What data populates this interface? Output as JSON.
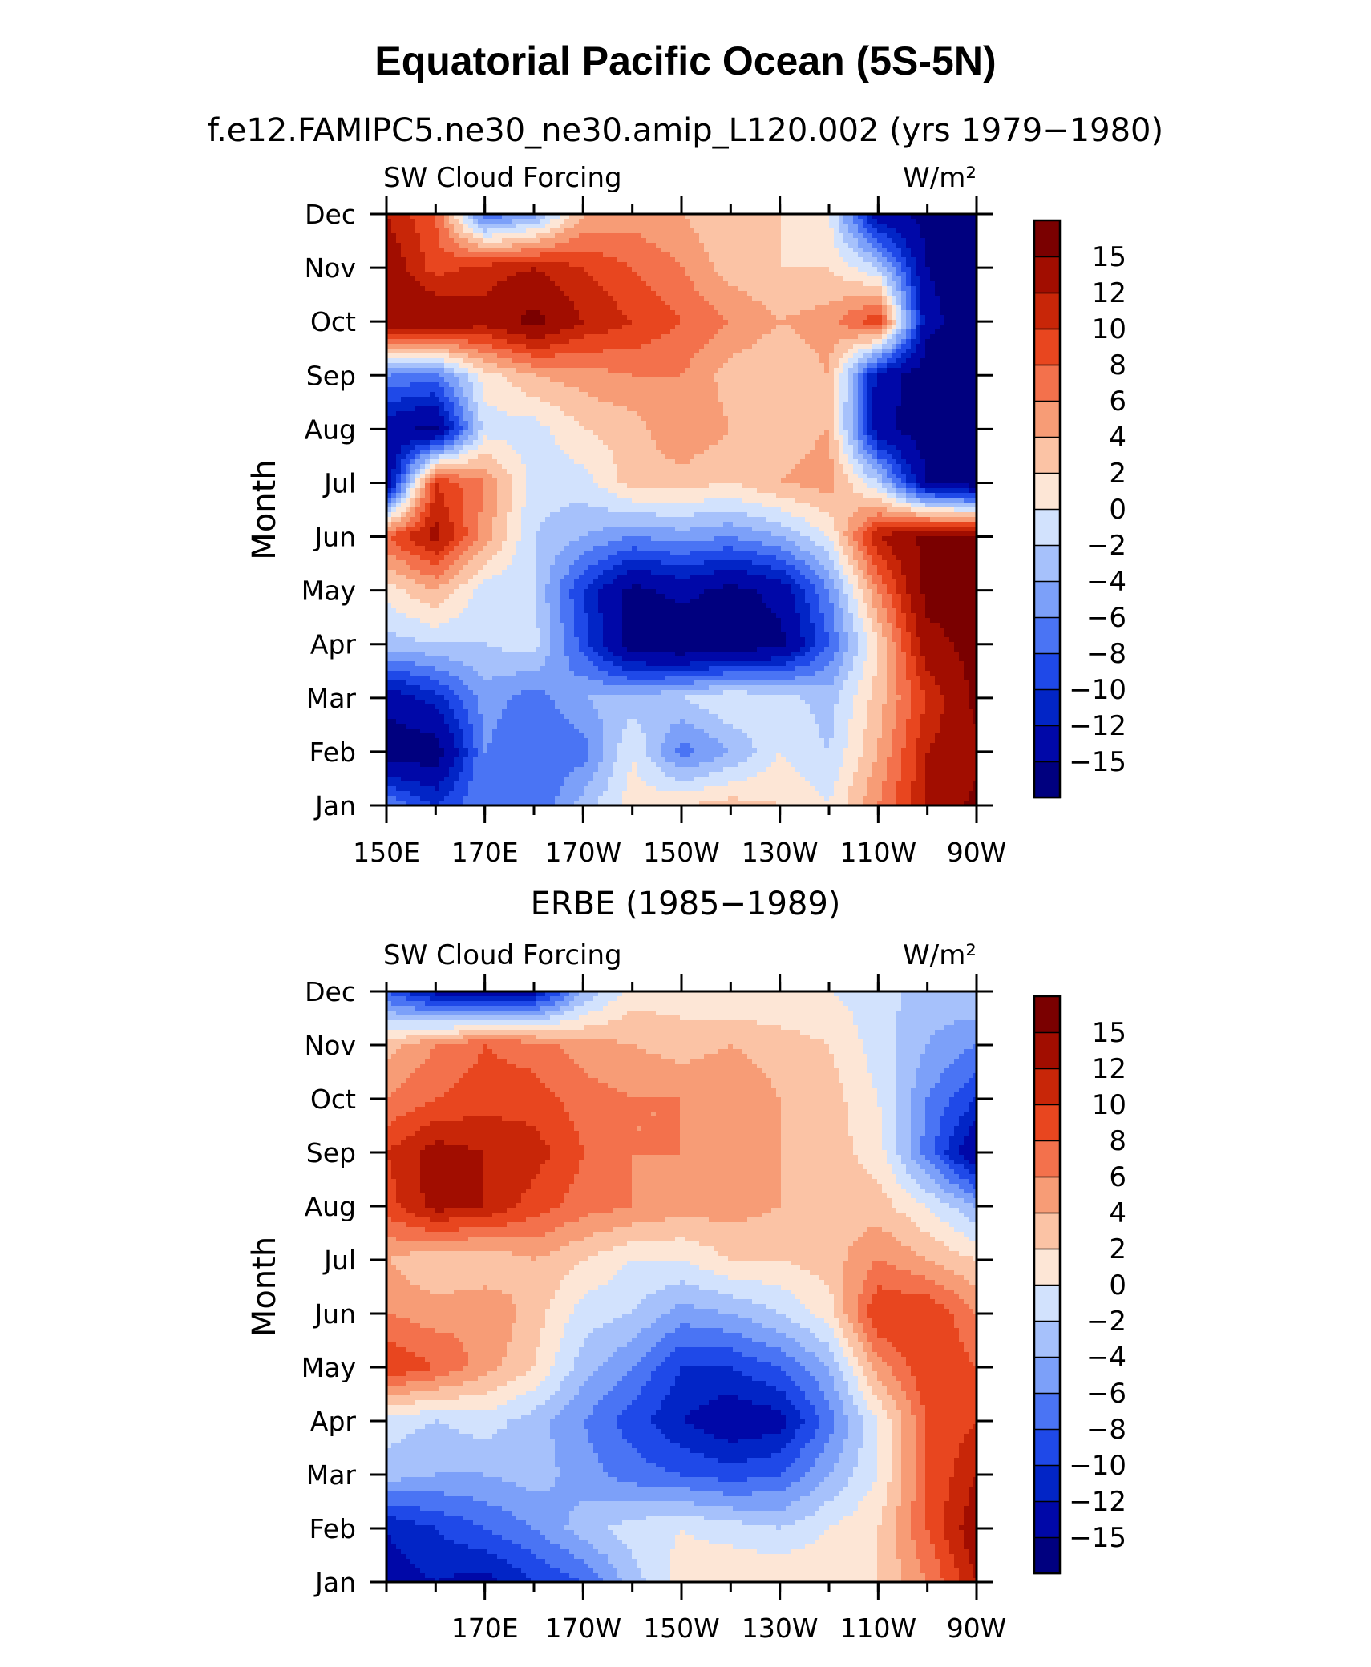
{
  "figure": {
    "title": "Equatorial Pacific Ocean (5S-5N)"
  },
  "colors": {
    "levels": [
      "#00007f",
      "#0008a8",
      "#0225c6",
      "#1f49e8",
      "#4a74f4",
      "#7ca0f9",
      "#a6c1fb",
      "#d2e2fd",
      "#fde6d6",
      "#fbc3a5",
      "#f79c76",
      "#f3714c",
      "#e8461f",
      "#c82608",
      "#a10d00",
      "#7a0000"
    ]
  },
  "chart_data": [
    {
      "type": "heatmap",
      "subtitle": "f.e12.FAMIPC5.ne30_ne30.amip_L120.002 (yrs 1979−1980)",
      "left_label": "SW Cloud Forcing",
      "units_label": "W/m²",
      "ylabel": "Month",
      "x_ticklabels": [
        "150E",
        "170E",
        "170W",
        "150W",
        "130W",
        "110W",
        "90W"
      ],
      "x_tick_lon": [
        150,
        170,
        190,
        210,
        230,
        250,
        270
      ],
      "y_ticklabels": [
        "Jan",
        "Feb",
        "Mar",
        "Apr",
        "May",
        "Jun",
        "Jul",
        "Aug",
        "Sep",
        "Oct",
        "Nov",
        "Dec"
      ],
      "xlim_lon": [
        150,
        270
      ],
      "colorbar_labels": [
        "15",
        "12",
        "10",
        "8",
        "6",
        "4",
        "2",
        "0",
        "−2",
        "−4",
        "−6",
        "−8",
        "−10",
        "−12",
        "−15"
      ],
      "colorbar_levels": [
        15,
        12,
        10,
        8,
        6,
        4,
        2,
        0,
        -2,
        -4,
        -6,
        -8,
        -10,
        -12,
        -15
      ],
      "grid_lon": [
        150,
        160,
        170,
        180,
        190,
        200,
        210,
        220,
        230,
        240,
        250,
        260,
        270
      ],
      "grid_month": [
        "Jan",
        "Feb",
        "Mar",
        "Apr",
        "May",
        "Jun",
        "Jul",
        "Aug",
        "Sep",
        "Oct",
        "Nov",
        "Dec"
      ],
      "z": [
        [
          -6,
          -10,
          -6,
          -8,
          -3,
          1,
          2,
          3,
          2,
          0,
          6,
          12,
          16
        ],
        [
          -17,
          -17,
          -6,
          -8,
          -7,
          0,
          -7,
          -4,
          0,
          -2,
          4,
          12,
          14
        ],
        [
          -14,
          -11,
          -5,
          -7,
          -4,
          -3,
          -2,
          0,
          -1,
          -3,
          3,
          10,
          16
        ],
        [
          -3,
          -2,
          -2,
          -1,
          -9,
          -17,
          -18,
          -17,
          -16,
          -8,
          2,
          14,
          16
        ],
        [
          1,
          4,
          -1,
          -2,
          -10,
          -16,
          -14,
          -16,
          -14,
          -6,
          6,
          16,
          16
        ],
        [
          8,
          13,
          5,
          -2,
          -4,
          -6,
          -5,
          -6,
          -4,
          0,
          12,
          16,
          16
        ],
        [
          -15,
          10,
          6,
          -1,
          -1,
          3,
          3,
          2,
          4,
          5,
          -2,
          -15,
          -17
        ],
        [
          -14,
          -16,
          -1,
          -1,
          2,
          3,
          6,
          4,
          3,
          4,
          -14,
          -17,
          -17
        ],
        [
          -6,
          -7,
          1,
          4,
          5,
          6,
          6,
          3,
          2,
          4,
          -13,
          -17,
          -17
        ],
        [
          15,
          15,
          13,
          16,
          12,
          10,
          8,
          6,
          4,
          5,
          10,
          -14,
          -17
        ],
        [
          14,
          9,
          11,
          12,
          10,
          8,
          6,
          3,
          2,
          2,
          -2,
          -15,
          -17
        ],
        [
          12,
          8,
          -8,
          -5,
          4,
          5,
          4,
          2,
          2,
          0,
          -14,
          -16,
          -17
        ]
      ]
    },
    {
      "type": "heatmap",
      "subtitle": "ERBE (1985−1989)",
      "left_label": "SW Cloud Forcing",
      "units_label": "W/m²",
      "ylabel": "Month",
      "x_ticklabels": [
        "170E",
        "170W",
        "150W",
        "130W",
        "110W",
        "90W"
      ],
      "x_tick_lon": [
        170,
        190,
        210,
        230,
        250,
        270
      ],
      "y_ticklabels": [
        "Jan",
        "Feb",
        "Mar",
        "Apr",
        "May",
        "Jun",
        "Jul",
        "Aug",
        "Sep",
        "Oct",
        "Nov",
        "Dec"
      ],
      "xlim_lon": [
        150,
        270
      ],
      "colorbar_labels": [
        "15",
        "12",
        "10",
        "8",
        "6",
        "4",
        "2",
        "0",
        "−2",
        "−4",
        "−6",
        "−8",
        "−10",
        "−12",
        "−15"
      ],
      "colorbar_levels": [
        15,
        12,
        10,
        8,
        6,
        4,
        2,
        0,
        -2,
        -4,
        -6,
        -8,
        -10,
        -12,
        -15
      ],
      "grid_lon": [
        150,
        160,
        170,
        180,
        190,
        200,
        210,
        220,
        230,
        240,
        250,
        260,
        270
      ],
      "grid_month": [
        "Jan",
        "Feb",
        "Mar",
        "Apr",
        "May",
        "Jun",
        "Jul",
        "Aug",
        "Sep",
        "Oct",
        "Nov",
        "Dec"
      ],
      "z": [
        [
          -13,
          -12,
          -13,
          -10,
          -8,
          -3,
          1,
          2,
          2,
          2,
          2,
          6,
          12
        ],
        [
          -12,
          -10,
          -8,
          -6,
          -3,
          -1,
          0,
          -1,
          -2,
          0,
          2,
          8,
          14
        ],
        [
          -3,
          -4,
          -4,
          -3,
          -5,
          -7,
          -8,
          -9,
          -8,
          -4,
          0,
          8,
          12
        ],
        [
          -1,
          -2,
          -1,
          -3,
          -6,
          -9,
          -12,
          -14,
          -13,
          -7,
          0,
          8,
          10
        ],
        [
          10,
          8,
          5,
          2,
          -3,
          -6,
          -10,
          -10,
          -8,
          -4,
          5,
          10,
          8
        ],
        [
          6,
          5,
          6,
          3,
          -1,
          -2,
          -5,
          -4,
          -2,
          1,
          10,
          10,
          6
        ],
        [
          4,
          2,
          2,
          4,
          2,
          0,
          0,
          2,
          2,
          3,
          6,
          4,
          2
        ],
        [
          9,
          13,
          12,
          9,
          7,
          6,
          5,
          5,
          4,
          3,
          3,
          0,
          -4
        ],
        [
          10,
          13,
          12,
          11,
          8,
          6,
          6,
          5,
          4,
          3,
          1,
          -7,
          -15
        ],
        [
          6,
          8,
          9,
          9,
          7,
          6,
          6,
          6,
          4,
          3,
          0,
          -6,
          -10
        ],
        [
          3,
          6,
          8,
          7,
          5,
          4,
          3,
          4,
          3,
          2,
          -1,
          -4,
          -6
        ],
        [
          -8,
          -13,
          -15,
          -13,
          -4,
          1,
          1,
          0,
          0,
          0,
          -1,
          -3,
          -2
        ]
      ]
    }
  ]
}
